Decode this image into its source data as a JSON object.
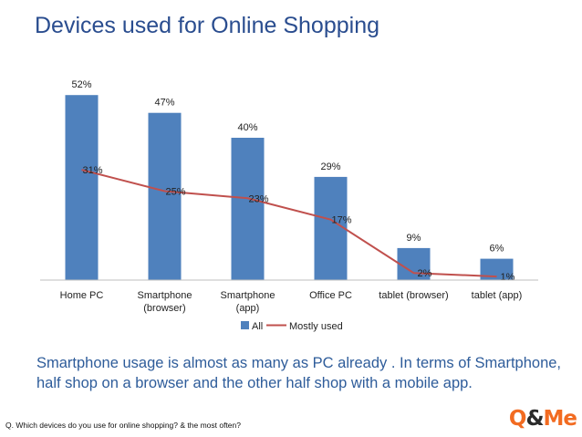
{
  "title": "Devices used for Online Shopping",
  "caption": "Smartphone usage is almost as many as PC already . In terms of Smartphone, half shop on a browser and the other half shop with a mobile app.",
  "question": "Q.    Which devices do you use for online shopping? & the most often?",
  "logo": {
    "left": "Q",
    "amp": "&",
    "right": "Me"
  },
  "colors": {
    "bar": "#4f81bd",
    "line": "#c0504d",
    "title": "#2a4d8f",
    "caption": "#2e5c9a",
    "logo": "#f26b21"
  },
  "chart_data": {
    "type": "bar",
    "categories": [
      [
        "Home PC"
      ],
      [
        "Smartphone",
        "(browser)"
      ],
      [
        "Smartphone",
        "(app)"
      ],
      [
        "Office PC"
      ],
      [
        "tablet (browser)"
      ],
      [
        "tablet (app)"
      ]
    ],
    "series": [
      {
        "name": "All",
        "type": "bar",
        "values": [
          52,
          47,
          40,
          29,
          9,
          6
        ],
        "labels": [
          "52%",
          "47%",
          "40%",
          "29%",
          "9%",
          "6%"
        ]
      },
      {
        "name": "Mostly used",
        "type": "line",
        "values": [
          31,
          25,
          23,
          17,
          2,
          1
        ],
        "labels": [
          "31%",
          "25%",
          "23%",
          "17%",
          "2%",
          "1%"
        ]
      }
    ],
    "ylim": [
      0,
      56
    ],
    "legend": "bottom",
    "grid": false
  }
}
